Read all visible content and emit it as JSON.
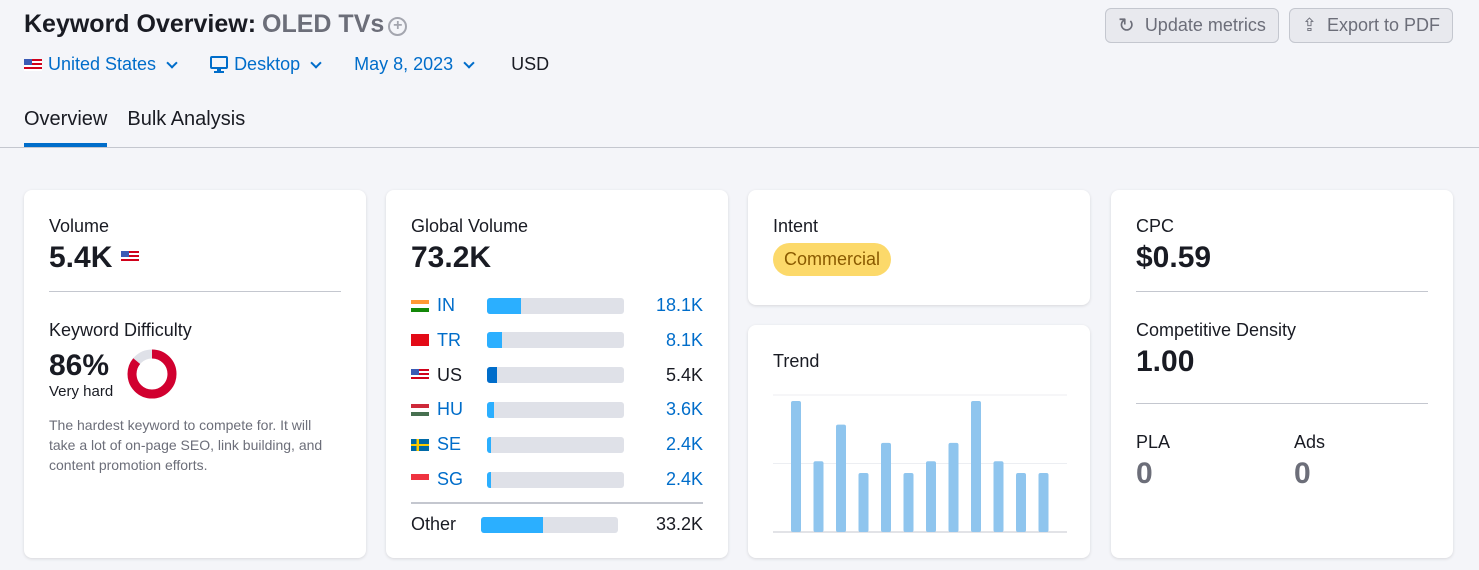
{
  "header": {
    "title": "Keyword Overview:",
    "keyword": "OLED TVs",
    "add_icon": "plus-circle-icon"
  },
  "filters": {
    "country": "United States",
    "device": "Desktop",
    "date": "May 8, 2023",
    "currency": "USD"
  },
  "buttons": {
    "update": "Update metrics",
    "export": "Export to PDF"
  },
  "tabs": [
    {
      "label": "Overview",
      "active": true
    },
    {
      "label": "Bulk Analysis",
      "active": false
    }
  ],
  "volume": {
    "label": "Volume",
    "value": "5.4K"
  },
  "difficulty": {
    "label": "Keyword Difficulty",
    "value": "86%",
    "percent": 86,
    "level": "Very hard",
    "description": "The hardest keyword to compete for. It will take a lot of on-page SEO, link building, and content promotion efforts.",
    "color": "#d1002f"
  },
  "global": {
    "label": "Global Volume",
    "value": "73.2K",
    "countries": [
      {
        "code": "IN",
        "value": "18.1K",
        "share": 0.25
      },
      {
        "code": "TR",
        "value": "8.1K",
        "share": 0.11
      },
      {
        "code": "US",
        "value": "5.4K",
        "share": 0.07
      },
      {
        "code": "HU",
        "value": "3.6K",
        "share": 0.05
      },
      {
        "code": "SE",
        "value": "2.4K",
        "share": 0.03
      },
      {
        "code": "SG",
        "value": "2.4K",
        "share": 0.03
      }
    ],
    "other": {
      "label": "Other",
      "value": "33.2K",
      "share": 0.45
    }
  },
  "intent": {
    "label": "Intent",
    "value": "Commercial",
    "color": "#fcd96a"
  },
  "trend": {
    "label": "Trend",
    "values": [
      100,
      54,
      82,
      45,
      68,
      45,
      54,
      68,
      100,
      54,
      45,
      45
    ],
    "color": "#8fc5ee"
  },
  "cpc": {
    "label": "CPC",
    "value": "$0.59"
  },
  "density": {
    "label": "Competitive Density",
    "value": "1.00"
  },
  "pla": {
    "label": "PLA",
    "value": "0"
  },
  "ads": {
    "label": "Ads",
    "value": "0"
  }
}
